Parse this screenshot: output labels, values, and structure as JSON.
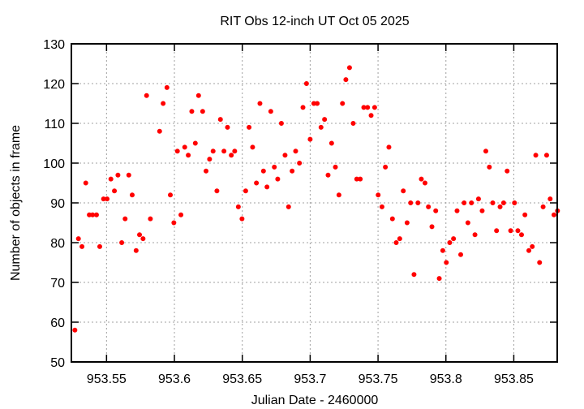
{
  "chart_data": {
    "type": "scatter",
    "title": "RIT Obs 12-inch UT Oct 05 2025",
    "xlabel": "Julian Date - 2460000",
    "ylabel": "Number of objects in frame",
    "xlim": [
      953.5241,
      953.882
    ],
    "ylim": [
      50,
      130
    ],
    "xticks": [
      953.55,
      953.6,
      953.65,
      953.7,
      953.75,
      953.8,
      953.85
    ],
    "xtick_labels": [
      "953.55",
      "953.6",
      "953.65",
      "953.7",
      "953.75",
      "953.8",
      "953.85"
    ],
    "yticks": [
      50,
      60,
      70,
      80,
      90,
      100,
      110,
      120,
      130
    ],
    "ytick_labels": [
      "50",
      "60",
      "70",
      "80",
      "90",
      "100",
      "110",
      "120",
      "130"
    ],
    "grid": true,
    "marker_color": "#ff0000",
    "points": [
      [
        953.5267,
        58
      ],
      [
        953.5293,
        81
      ],
      [
        953.5319,
        79
      ],
      [
        953.5347,
        95
      ],
      [
        953.5373,
        87
      ],
      [
        953.5397,
        87
      ],
      [
        953.5426,
        87
      ],
      [
        953.545,
        79
      ],
      [
        953.5478,
        91
      ],
      [
        953.5504,
        91
      ],
      [
        953.5532,
        96
      ],
      [
        953.5558,
        93
      ],
      [
        953.5584,
        97
      ],
      [
        953.5612,
        80
      ],
      [
        953.5637,
        86
      ],
      [
        953.5664,
        97
      ],
      [
        953.5689,
        92
      ],
      [
        953.5718,
        78
      ],
      [
        953.5743,
        82
      ],
      [
        953.5769,
        81
      ],
      [
        953.5795,
        117
      ],
      [
        953.5823,
        86
      ],
      [
        953.5891,
        108
      ],
      [
        953.5917,
        115
      ],
      [
        953.5945,
        119
      ],
      [
        953.597,
        92
      ],
      [
        953.5996,
        85
      ],
      [
        953.6022,
        103
      ],
      [
        953.6048,
        87
      ],
      [
        953.6076,
        104
      ],
      [
        953.6102,
        102
      ],
      [
        953.6128,
        113
      ],
      [
        953.6154,
        105
      ],
      [
        953.6178,
        117
      ],
      [
        953.6208,
        113
      ],
      [
        953.6233,
        98
      ],
      [
        953.6259,
        101
      ],
      [
        953.6285,
        103
      ],
      [
        953.6313,
        93
      ],
      [
        953.6339,
        111
      ],
      [
        953.6365,
        103
      ],
      [
        953.6391,
        109
      ],
      [
        953.6419,
        102
      ],
      [
        953.6444,
        103
      ],
      [
        953.6471,
        89
      ],
      [
        953.6498,
        86
      ],
      [
        953.6525,
        93
      ],
      [
        953.655,
        109
      ],
      [
        953.6576,
        104
      ],
      [
        953.6604,
        95
      ],
      [
        953.663,
        115
      ],
      [
        953.6656,
        98
      ],
      [
        953.6682,
        94
      ],
      [
        953.671,
        113
      ],
      [
        953.6736,
        99
      ],
      [
        953.6761,
        96
      ],
      [
        953.6788,
        110
      ],
      [
        953.6815,
        102
      ],
      [
        953.6841,
        89
      ],
      [
        953.6867,
        98
      ],
      [
        953.6893,
        103
      ],
      [
        953.6921,
        100
      ],
      [
        953.6947,
        114
      ],
      [
        953.6973,
        120
      ],
      [
        953.7,
        106
      ],
      [
        953.7027,
        115
      ],
      [
        953.7052,
        115
      ],
      [
        953.708,
        109
      ],
      [
        953.7106,
        111
      ],
      [
        953.7132,
        97
      ],
      [
        953.7158,
        105
      ],
      [
        953.7186,
        99
      ],
      [
        953.7212,
        92
      ],
      [
        953.7238,
        115
      ],
      [
        953.7263,
        121
      ],
      [
        953.729,
        124
      ],
      [
        953.7317,
        110
      ],
      [
        953.7343,
        96
      ],
      [
        953.7369,
        96
      ],
      [
        953.7395,
        114
      ],
      [
        953.7423,
        114
      ],
      [
        953.7449,
        112
      ],
      [
        953.7475,
        114
      ],
      [
        953.7501,
        92
      ],
      [
        953.7529,
        89
      ],
      [
        953.7554,
        99
      ],
      [
        953.758,
        104
      ],
      [
        953.7606,
        86
      ],
      [
        953.7634,
        80
      ],
      [
        953.766,
        81
      ],
      [
        953.7686,
        93
      ],
      [
        953.7714,
        85
      ],
      [
        953.774,
        90
      ],
      [
        953.7765,
        72
      ],
      [
        953.7794,
        90
      ],
      [
        953.7819,
        96
      ],
      [
        953.7846,
        95
      ],
      [
        953.7871,
        89
      ],
      [
        953.7897,
        84
      ],
      [
        953.7925,
        88
      ],
      [
        953.7951,
        71
      ],
      [
        953.7977,
        78
      ],
      [
        953.8003,
        75
      ],
      [
        953.8028,
        80
      ],
      [
        953.8056,
        81
      ],
      [
        953.8082,
        88
      ],
      [
        953.8109,
        77
      ],
      [
        953.8134,
        90
      ],
      [
        953.8162,
        85
      ],
      [
        953.8188,
        90
      ],
      [
        953.8214,
        82
      ],
      [
        953.824,
        91
      ],
      [
        953.8267,
        88
      ],
      [
        953.8294,
        103
      ],
      [
        953.832,
        99
      ],
      [
        953.8345,
        90
      ],
      [
        953.8373,
        83
      ],
      [
        953.8399,
        89
      ],
      [
        953.8425,
        90
      ],
      [
        953.8451,
        98
      ],
      [
        953.8477,
        83
      ],
      [
        953.8505,
        90
      ],
      [
        953.853,
        83
      ],
      [
        953.8557,
        82
      ],
      [
        953.8582,
        87
      ],
      [
        953.8611,
        78
      ],
      [
        953.8636,
        79
      ],
      [
        953.8662,
        102
      ],
      [
        953.869,
        75
      ],
      [
        953.8716,
        89
      ],
      [
        953.8742,
        102
      ],
      [
        953.8768,
        91
      ],
      [
        953.8796,
        87
      ],
      [
        953.8822,
        88
      ]
    ]
  }
}
